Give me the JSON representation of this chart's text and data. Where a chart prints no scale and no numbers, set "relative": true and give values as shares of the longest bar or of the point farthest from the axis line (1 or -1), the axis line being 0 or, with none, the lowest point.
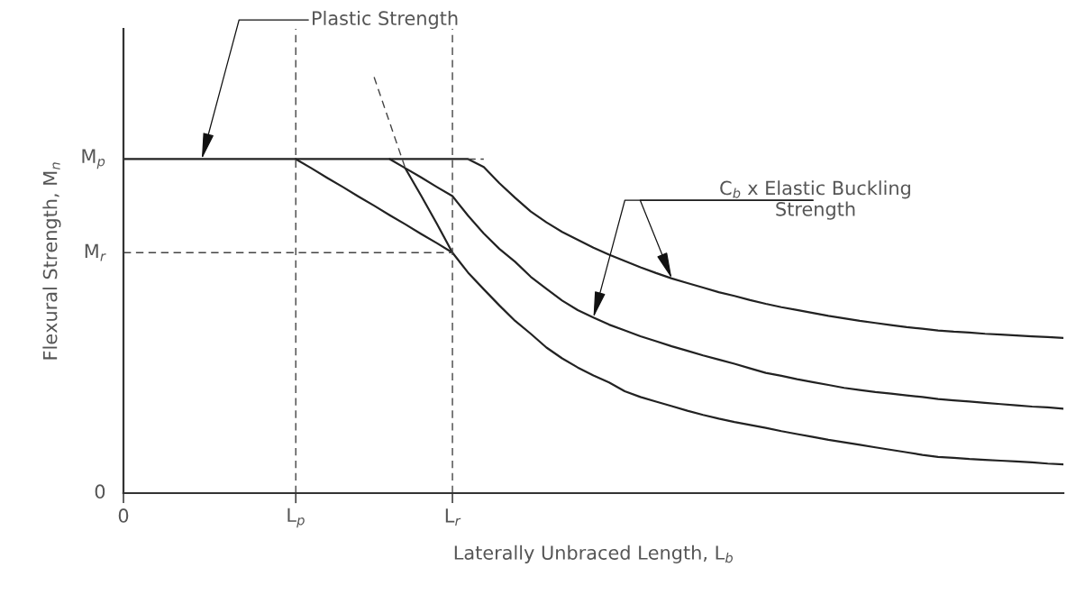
{
  "chart_data": {
    "type": "line",
    "relative": true,
    "xlabel": "Laterally Unbraced Length, L$_{b}$",
    "ylabel": "Flexural Strength, M$_{n}$",
    "categories": [
      "0",
      null,
      null,
      null,
      null,
      null,
      null,
      null,
      null,
      null,
      null,
      "L$_{p}$",
      null,
      null,
      null,
      null,
      null,
      null,
      null,
      null,
      null,
      "L$_{r}$",
      null,
      null,
      null,
      null,
      null,
      null,
      null,
      null,
      null,
      null,
      null,
      null,
      null,
      null,
      null,
      null,
      null,
      null,
      null,
      null,
      null,
      null,
      null,
      null,
      null,
      null,
      null,
      null,
      null,
      null,
      null,
      null,
      null,
      null,
      null,
      null,
      null,
      null,
      null
    ],
    "grid": false,
    "series": [
      {
        "color": "#222222",
        "line_style": "solid",
        "values": [
          0.803,
          0.803,
          0.803,
          0.803,
          0.803,
          0.803,
          0.803,
          0.803,
          0.803,
          0.803,
          0.803,
          0.803,
          0.781,
          0.758,
          0.736,
          0.713,
          0.691,
          0.668,
          0.646,
          0.623,
          0.601,
          0.578,
          0.53,
          0.49,
          0.451,
          0.414,
          0.383,
          0.35,
          0.324,
          0.302,
          0.283,
          0.266,
          0.245,
          0.231,
          0.22,
          0.209,
          0.198,
          0.188,
          0.179,
          0.171,
          0.164,
          0.157,
          0.149,
          0.142,
          0.135,
          0.128,
          0.122,
          0.116,
          0.11,
          0.104,
          0.098,
          0.092,
          0.087,
          0.085,
          0.082,
          0.08,
          0.078,
          0.076,
          0.074,
          0.071,
          0.069
        ]
      },
      {
        "color": "#222222",
        "line_style": "solid",
        "values": [
          null,
          null,
          null,
          null,
          null,
          null,
          null,
          null,
          null,
          null,
          null,
          null,
          null,
          null,
          null,
          null,
          null,
          null,
          0.78,
          0.715,
          0.648,
          0.578,
          null,
          null,
          null,
          null,
          null,
          null,
          null,
          null,
          null,
          null,
          null,
          null,
          null,
          null,
          null,
          null,
          null,
          null,
          null,
          null,
          null,
          null,
          null,
          null,
          null,
          null,
          null,
          null,
          null,
          null,
          null,
          null,
          null,
          null,
          null,
          null,
          null,
          null,
          null
        ]
      },
      {
        "color": "#444444",
        "line_style": "dashed",
        "values": [
          null,
          null,
          null,
          null,
          null,
          null,
          null,
          null,
          null,
          null,
          null,
          null,
          null,
          null,
          null,
          null,
          1.0,
          0.89,
          0.78,
          null,
          null,
          null,
          null,
          null,
          null,
          null,
          null,
          null,
          null,
          null,
          null,
          null,
          null,
          null,
          null,
          null,
          null,
          null,
          null,
          null,
          null,
          null,
          null,
          null,
          null,
          null,
          null,
          null,
          null,
          null,
          null,
          null,
          null,
          null,
          null,
          null,
          null,
          null,
          null,
          null,
          null
        ]
      },
      {
        "color": "#222222",
        "line_style": "solid",
        "values": [
          null,
          null,
          null,
          null,
          null,
          null,
          null,
          null,
          null,
          null,
          null,
          0.803,
          0.803,
          0.803,
          0.803,
          0.803,
          0.803,
          0.803,
          0.781,
          0.759,
          0.736,
          0.714,
          0.667,
          0.624,
          0.587,
          0.556,
          0.52,
          0.491,
          0.463,
          0.44,
          0.422,
          0.405,
          0.391,
          0.377,
          0.365,
          0.353,
          0.342,
          0.331,
          0.321,
          0.311,
          0.3,
          0.289,
          0.282,
          0.274,
          0.267,
          0.26,
          0.253,
          0.248,
          0.243,
          0.239,
          0.235,
          0.231,
          0.226,
          0.223,
          0.22,
          0.217,
          0.214,
          0.211,
          0.208,
          0.206,
          0.203
        ]
      },
      {
        "color": "#222222",
        "line_style": "solid",
        "values": [
          null,
          null,
          null,
          null,
          null,
          null,
          null,
          null,
          null,
          null,
          null,
          null,
          null,
          null,
          null,
          null,
          null,
          0.803,
          0.803,
          0.803,
          0.803,
          0.803,
          0.803,
          0.784,
          0.745,
          0.71,
          0.677,
          0.651,
          0.628,
          0.609,
          0.59,
          0.573,
          0.558,
          0.543,
          0.529,
          0.516,
          0.505,
          0.494,
          0.483,
          0.474,
          0.464,
          0.455,
          0.447,
          0.44,
          0.433,
          0.426,
          0.42,
          0.414,
          0.409,
          0.404,
          0.399,
          0.395,
          0.391,
          0.388,
          0.386,
          0.383,
          0.381,
          0.379,
          0.377,
          0.375,
          0.373
        ]
      },
      {
        "color": "#444444",
        "line_style": "dashed",
        "values": [
          null,
          null,
          null,
          null,
          null,
          null,
          null,
          null,
          null,
          null,
          null,
          null,
          null,
          null,
          null,
          null,
          null,
          null,
          null,
          null,
          null,
          null,
          0.803,
          0.803,
          null,
          null,
          null,
          null,
          null,
          null,
          null,
          null,
          null,
          null,
          null,
          null,
          null,
          null,
          null,
          null,
          null,
          null,
          null,
          null,
          null,
          null,
          null,
          null,
          null,
          null,
          null,
          null,
          null,
          null,
          null,
          null,
          null,
          null,
          null,
          null,
          null
        ]
      },
      {
        "color": "#444444",
        "line_style": "dashed",
        "values": [
          0.578,
          0.578,
          0.578,
          0.578,
          0.578,
          0.578,
          0.578,
          0.578,
          0.578,
          0.578,
          0.578,
          0.578,
          0.578,
          0.578,
          0.578,
          0.578,
          0.578,
          0.578,
          0.578,
          0.578,
          0.578,
          0.578,
          null,
          null,
          null,
          null,
          null,
          null,
          null,
          null,
          null,
          null,
          null,
          null,
          null,
          null,
          null,
          null,
          null,
          null,
          null,
          null,
          null,
          null,
          null,
          null,
          null,
          null,
          null,
          null,
          null,
          null,
          null,
          null,
          null,
          null,
          null,
          null,
          null,
          null,
          null
        ]
      }
    ],
    "ref_lines": [
      {
        "axis": "x",
        "value": "L$_{p}$",
        "color": "#444444",
        "line_style": "dashed"
      },
      {
        "axis": "x",
        "value": "L$_{r}$",
        "color": "#444444",
        "line_style": "dashed"
      }
    ],
    "annotations": [
      "Plastic Strength",
      "C$_{b}$ x Elastic Buckling\nStrength",
      "0",
      {
        "text": "M$_{p}$",
        "x": "0",
        "y": 0.803
      },
      {
        "text": "M$_{r}$",
        "x": "0",
        "y": 0.578
      }
    ]
  }
}
